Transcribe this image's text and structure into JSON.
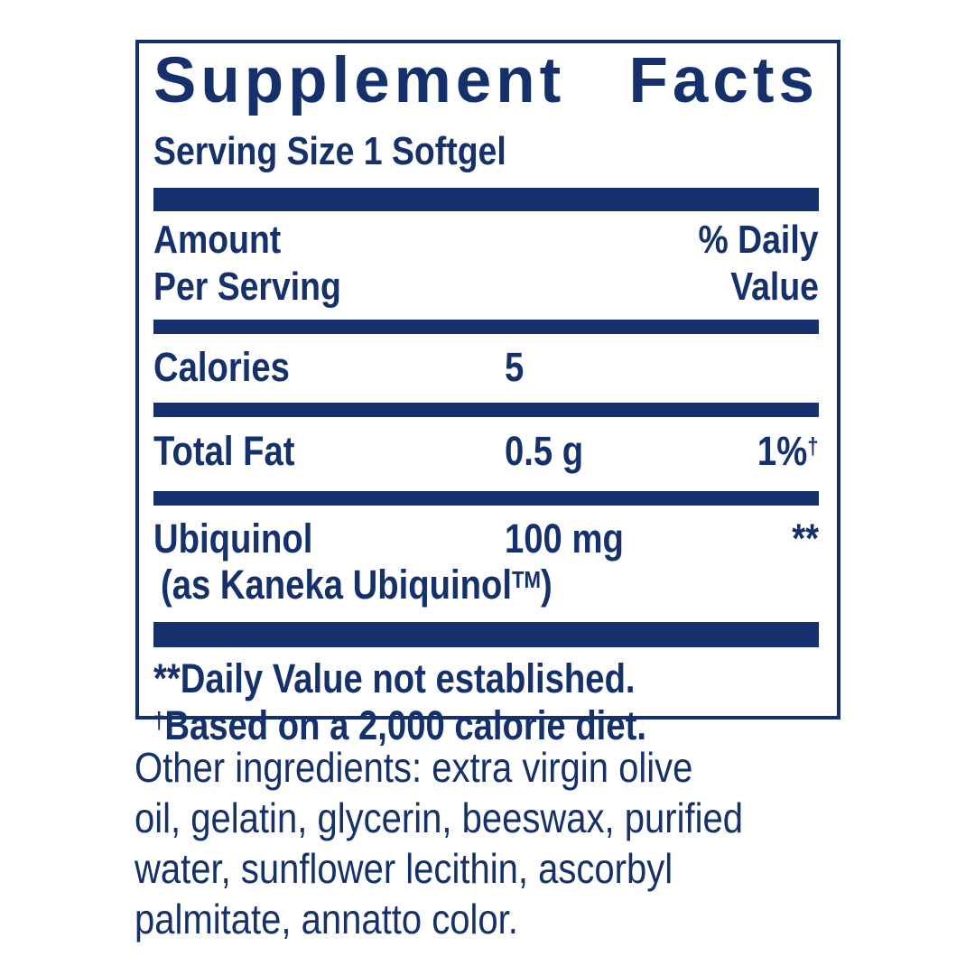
{
  "colors": {
    "navy": "#14316d",
    "background": "#ffffff"
  },
  "panel": {
    "title": "Supplement Facts",
    "serving_size": "Serving Size 1 Softgel",
    "header": {
      "amount_line1": "Amount",
      "amount_line2": "Per Serving",
      "dv_line1": "% Daily",
      "dv_line2": "Value"
    },
    "rows": [
      {
        "name": "Calories",
        "amount": "5",
        "dv": "",
        "dv_sup": ""
      },
      {
        "name": "Total Fat",
        "amount": "0.5 g",
        "dv": "1%",
        "dv_sup": "†"
      },
      {
        "name": "Ubiquinol",
        "amount": "100 mg",
        "dv": "**",
        "dv_sup": "",
        "sub_pre": "(as Kaneka Ubiquinol",
        "sub_sup": "TM",
        "sub_post": ")"
      }
    ],
    "footnotes": {
      "line1": "**Daily Value not established.",
      "line2_sup": "†",
      "line2_text": "Based on a 2,000 calorie diet."
    }
  },
  "other_ingredients": {
    "lines": [
      "Other ingredients: extra virgin olive",
      "oil, gelatin, glycerin, beeswax, purified",
      "water, sunflower lecithin, ascorbyl",
      "palmitate, annatto color."
    ]
  }
}
